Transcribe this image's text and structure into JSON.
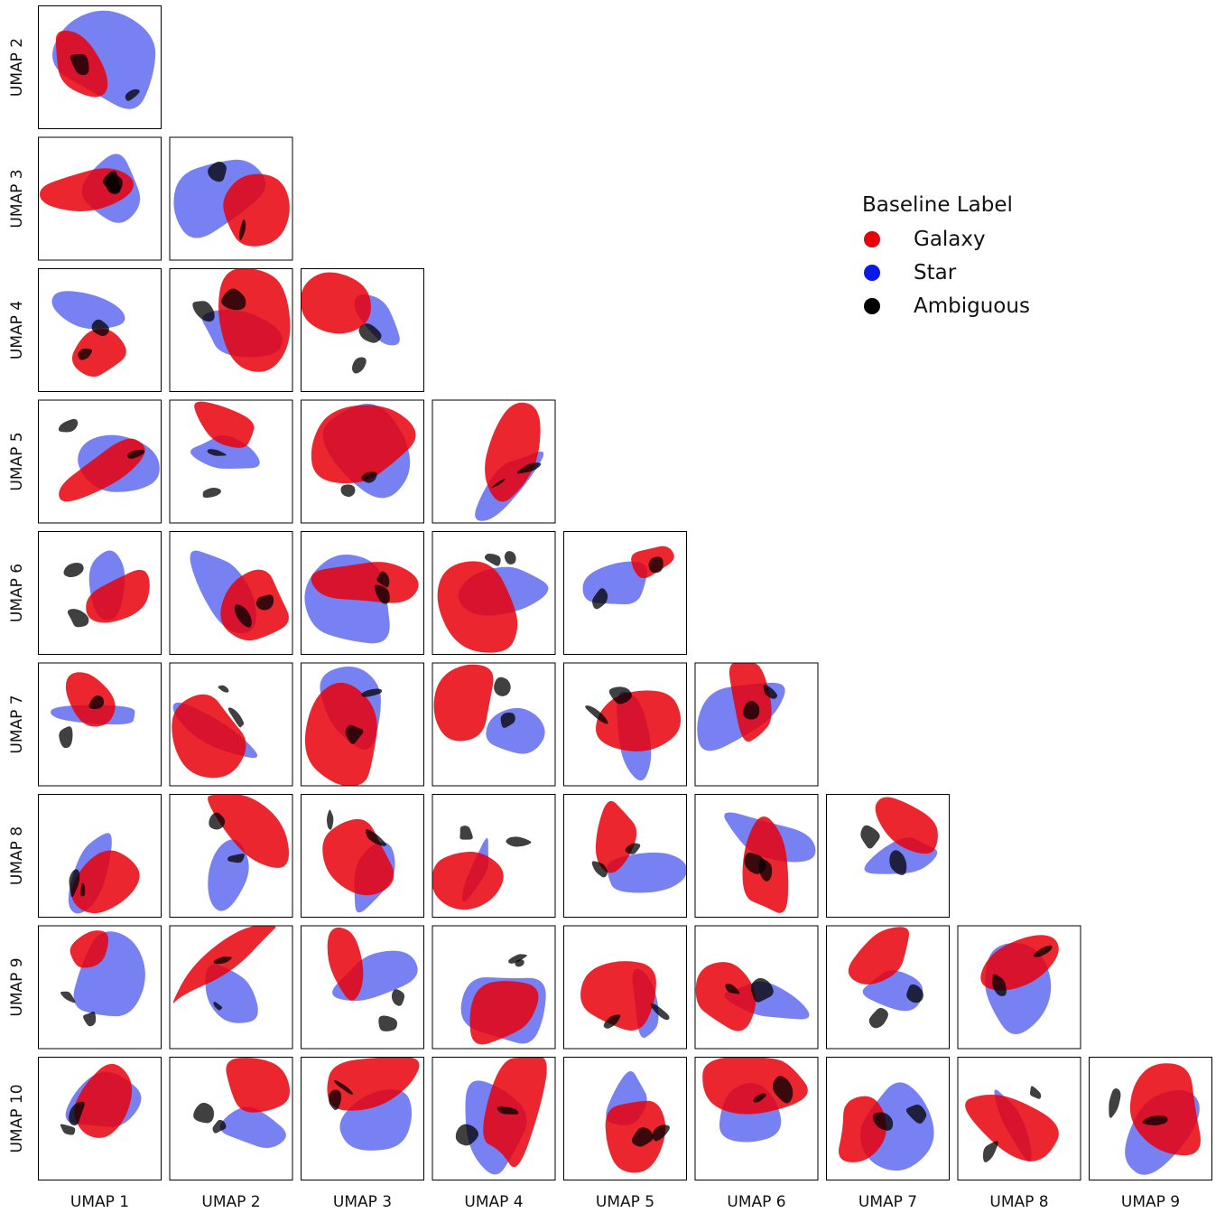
{
  "chart_data": {
    "type": "scatter",
    "layout": "lower-triangular pair plot (corner plot)",
    "variables": [
      "UMAP 1",
      "UMAP 2",
      "UMAP 3",
      "UMAP 4",
      "UMAP 5",
      "UMAP 6",
      "UMAP 7",
      "UMAP 8",
      "UMAP 9",
      "UMAP 10"
    ],
    "row_labels": [
      "UMAP 2",
      "UMAP 3",
      "UMAP 4",
      "UMAP 5",
      "UMAP 6",
      "UMAP 7",
      "UMAP 8",
      "UMAP 9",
      "UMAP 10"
    ],
    "col_labels": [
      "UMAP 1",
      "UMAP 2",
      "UMAP 3",
      "UMAP 4",
      "UMAP 5",
      "UMAP 6",
      "UMAP 7",
      "UMAP 8",
      "UMAP 9"
    ],
    "ticks": false,
    "legend": {
      "title": "Baseline Label",
      "placement": "upper-right",
      "entries": [
        {
          "label": "Galaxy",
          "color": "#e8000b"
        },
        {
          "label": "Star",
          "color": "#0a19e6"
        },
        {
          "label": "Ambiguous",
          "color": "#000000"
        }
      ]
    },
    "series": [
      {
        "name": "Galaxy",
        "color": "#e8000b"
      },
      {
        "name": "Star",
        "color": "#0a19e6"
      },
      {
        "name": "Ambiguous",
        "color": "#000000"
      }
    ]
  }
}
